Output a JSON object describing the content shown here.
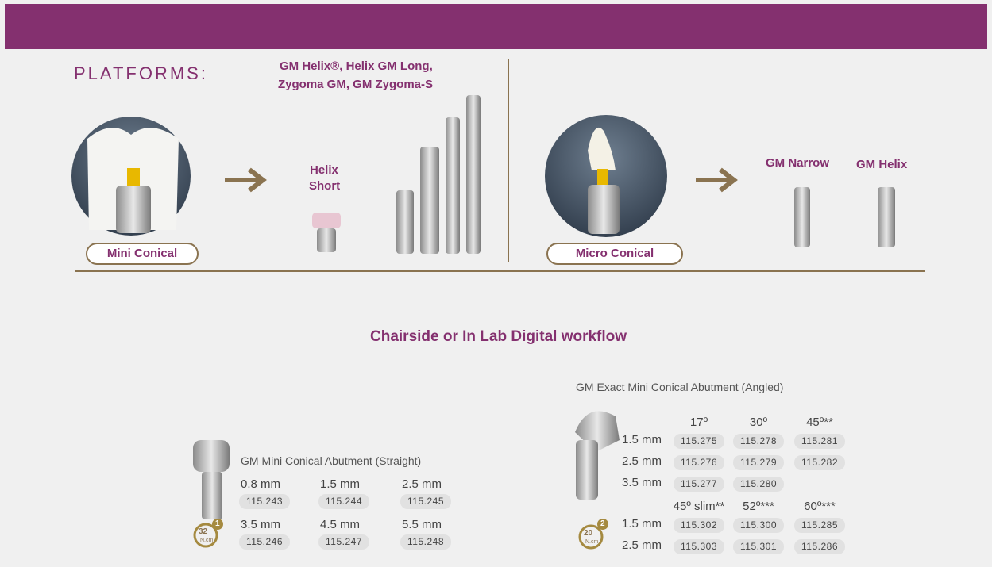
{
  "platforms": {
    "heading": "PLATFORMS:",
    "mini": {
      "label": "Mini Conical",
      "implant_groups": [
        {
          "lines": [
            "Helix",
            "Short"
          ]
        },
        {
          "lines": [
            "GM Helix®, Helix GM Long,",
            "Zygoma GM, GM Zygoma-S"
          ]
        }
      ]
    },
    "micro": {
      "label": "Micro Conical",
      "implants": [
        "GM Narrow",
        "GM Helix"
      ]
    }
  },
  "workflow_title": "Chairside or In Lab Digital workflow",
  "straight": {
    "title": "GM Mini Conical Abutment (Straight)",
    "torque": {
      "value": "32",
      "unit": "N.cm",
      "step": "1"
    },
    "items": [
      {
        "size": "0.8 mm",
        "ref": "115.243"
      },
      {
        "size": "1.5 mm",
        "ref": "115.244"
      },
      {
        "size": "2.5 mm",
        "ref": "115.245"
      },
      {
        "size": "3.5 mm",
        "ref": "115.246"
      },
      {
        "size": "4.5 mm",
        "ref": "115.247"
      },
      {
        "size": "5.5 mm",
        "ref": "115.248"
      }
    ]
  },
  "angled": {
    "title": "GM Exact Mini Conical Abutment (Angled)",
    "torque": {
      "value": "20",
      "unit": "N.cm",
      "step": "2"
    },
    "tables": [
      {
        "angles": [
          "17º",
          "30º",
          "45º**"
        ],
        "rows": [
          {
            "height": "1.5 mm",
            "refs": [
              "115.275",
              "115.278",
              "115.281"
            ]
          },
          {
            "height": "2.5 mm",
            "refs": [
              "115.276",
              "115.279",
              "115.282"
            ]
          },
          {
            "height": "3.5 mm",
            "refs": [
              "115.277",
              "115.280"
            ]
          }
        ]
      },
      {
        "angles": [
          "45º slim**",
          "52º***",
          "60º***"
        ],
        "rows": [
          {
            "height": "1.5 mm",
            "refs": [
              "115.302",
              "115.300",
              "115.285"
            ]
          },
          {
            "height": "2.5 mm",
            "refs": [
              "115.303",
              "115.301",
              "115.286"
            ]
          }
        ]
      }
    ]
  }
}
